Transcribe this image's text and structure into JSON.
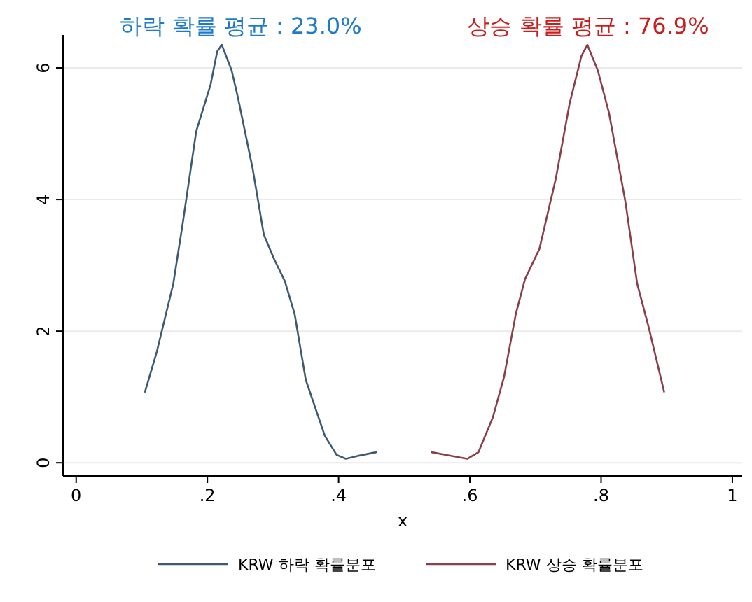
{
  "chart_data": {
    "type": "line",
    "xlabel": "x",
    "annotations": [
      "하락 확률 평균 : 23.0%",
      "상승 확률 평균 : 76.9%"
    ],
    "xlim": [
      -0.02,
      1.015
    ],
    "ylim": [
      -0.2,
      6.5
    ],
    "xticks": [
      0,
      {
        "value": 0.2,
        "label": ".2"
      },
      {
        "value": 0.4,
        "label": ".4"
      },
      {
        "value": 0.6,
        "label": ".6"
      },
      {
        "value": 0.8,
        "label": ".8"
      },
      1
    ],
    "yticks": [
      0,
      2,
      4,
      6
    ],
    "grid": "y",
    "legend": "bottom",
    "series": [
      {
        "name": "KRW 하락 확률분포",
        "color": "#3e5a73",
        "x": [
          0.105,
          0.123,
          0.148,
          0.162,
          0.183,
          0.205,
          0.215,
          0.222,
          0.237,
          0.247,
          0.269,
          0.286,
          0.301,
          0.318,
          0.333,
          0.35,
          0.379,
          0.397,
          0.411,
          0.432,
          0.457
        ],
        "values": [
          1.08,
          1.69,
          2.72,
          3.61,
          5.04,
          5.75,
          6.25,
          6.35,
          5.96,
          5.53,
          4.47,
          3.47,
          3.11,
          2.76,
          2.26,
          1.26,
          0.41,
          0.12,
          0.06,
          0.11,
          0.16
        ]
      },
      {
        "name": "KRW 상승 확률분포",
        "color": "#8a3f4a",
        "x": [
          0.542,
          0.574,
          0.596,
          0.613,
          0.635,
          0.652,
          0.67,
          0.684,
          0.706,
          0.716,
          0.731,
          0.752,
          0.77,
          0.779,
          0.795,
          0.812,
          0.837,
          0.855,
          0.873,
          0.896
        ],
        "values": [
          0.16,
          0.1,
          0.06,
          0.16,
          0.69,
          1.3,
          2.26,
          2.79,
          3.25,
          3.68,
          4.32,
          5.46,
          6.18,
          6.35,
          5.96,
          5.32,
          3.97,
          2.72,
          2.04,
          1.08
        ]
      }
    ]
  }
}
